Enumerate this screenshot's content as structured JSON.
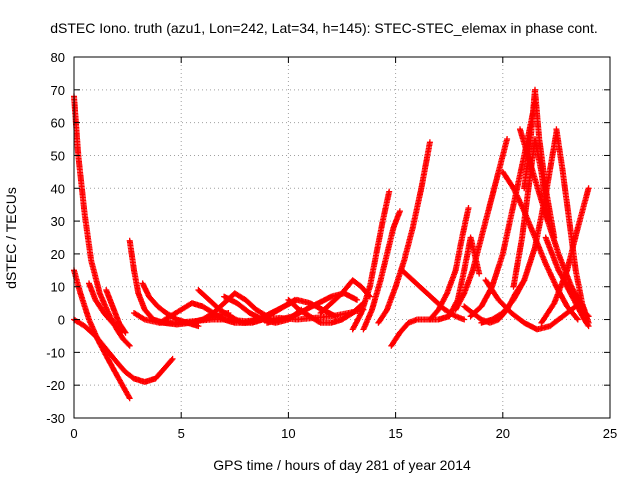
{
  "chart_data": {
    "type": "scatter",
    "title": "dSTEC Iono. truth (azu1, Lon=242, Lat=34, h=145): STEC-STEC_elemax in phase cont.",
    "xlabel": "GPS time / hours of day 281 of year 2014",
    "ylabel": "dSTEC  / TECUs",
    "xlim": [
      0,
      25
    ],
    "ylim": [
      -30,
      80
    ],
    "xticks": [
      0,
      5,
      10,
      15,
      20,
      25
    ],
    "yticks": [
      -30,
      -20,
      -10,
      0,
      10,
      20,
      30,
      40,
      50,
      60,
      70,
      80
    ],
    "grid": true,
    "marker": "+",
    "color": "#ff0000",
    "series": [
      {
        "x": [
          0.0,
          0.2,
          0.5,
          0.8,
          1.2,
          1.6,
          2.0,
          2.3,
          2.6
        ],
        "y": [
          68,
          50,
          32,
          18,
          8,
          2,
          -3,
          -6,
          -8
        ]
      },
      {
        "x": [
          0.0,
          0.3,
          0.7,
          1.1,
          1.5,
          2.0,
          2.6
        ],
        "y": [
          15,
          8,
          0,
          -6,
          -11,
          -17,
          -24
        ]
      },
      {
        "x": [
          0.0,
          0.5,
          1.0,
          1.5,
          2.0,
          2.4,
          2.8,
          3.3,
          3.8,
          4.2,
          4.6
        ],
        "y": [
          0,
          -2,
          -5,
          -9,
          -13,
          -16,
          -18,
          -19,
          -18,
          -15,
          -12
        ]
      },
      {
        "x": [
          0.7,
          1.0,
          1.4,
          1.8,
          2.2
        ],
        "y": [
          11,
          6,
          2,
          -1,
          -4
        ]
      },
      {
        "x": [
          1.5,
          1.8,
          2.1,
          2.4
        ],
        "y": [
          9,
          4,
          -1,
          -4
        ]
      },
      {
        "x": [
          2.6,
          2.8,
          3.0,
          3.3,
          3.7,
          4.2,
          4.8,
          5.4,
          6.0,
          6.6,
          7.2
        ],
        "y": [
          24,
          15,
          8,
          3,
          0,
          -1,
          -1.5,
          -1,
          0,
          1,
          2
        ]
      },
      {
        "x": [
          2.8,
          3.3,
          4.0,
          4.8,
          5.6,
          6.4,
          7.2,
          8.0,
          8.8,
          9.6,
          10.4,
          11.2,
          12.0,
          12.8,
          13.5
        ],
        "y": [
          2,
          0,
          -1,
          -1,
          -0.5,
          0,
          0,
          -0.5,
          0,
          0.5,
          0,
          0.5,
          1,
          2,
          3
        ]
      },
      {
        "x": [
          3.2,
          3.5,
          3.9,
          4.3,
          4.8,
          5.3,
          5.8
        ],
        "y": [
          11,
          7,
          4,
          2,
          0,
          -1,
          -2
        ]
      },
      {
        "x": [
          4.0,
          4.5,
          5.0,
          5.5,
          6.0,
          6.5,
          7.0,
          7.5,
          8.0
        ],
        "y": [
          -1,
          1,
          3,
          5,
          4,
          2,
          0,
          -1,
          -1
        ]
      },
      {
        "x": [
          5.5,
          6.0,
          6.5,
          7.0,
          7.5,
          8.0,
          8.5,
          9.0
        ],
        "y": [
          -1,
          0,
          2,
          5,
          8,
          6,
          3,
          1
        ]
      },
      {
        "x": [
          5.8,
          6.3,
          6.8,
          7.3,
          7.8,
          8.3,
          8.8,
          9.3,
          9.8,
          10.3
        ],
        "y": [
          9,
          6,
          3,
          1,
          -1,
          -1,
          0,
          2,
          4,
          6
        ]
      },
      {
        "x": [
          7.0,
          7.6,
          8.2,
          8.8,
          9.4,
          10.0,
          10.6
        ],
        "y": [
          7,
          5,
          2,
          0,
          -1,
          0,
          3
        ]
      },
      {
        "x": [
          8.0,
          8.6,
          9.2,
          9.8,
          10.4,
          11.0,
          11.6,
          12.2
        ],
        "y": [
          -1,
          0,
          2,
          4,
          6,
          5,
          3,
          1
        ]
      },
      {
        "x": [
          9.0,
          9.6,
          10.2,
          10.8,
          11.4,
          12.0,
          12.6,
          13.2
        ],
        "y": [
          -1,
          0,
          1,
          3,
          5,
          7,
          8,
          6
        ]
      },
      {
        "x": [
          10.0,
          10.5,
          11.0,
          11.5,
          12.0,
          12.5,
          13.0,
          13.5
        ],
        "y": [
          6,
          3,
          1,
          -1,
          -1,
          0,
          2,
          5
        ]
      },
      {
        "x": [
          11.5,
          12.0,
          12.5,
          13.0,
          13.4,
          13.8
        ],
        "y": [
          2,
          5,
          8,
          12,
          10,
          7
        ]
      },
      {
        "x": [
          13.0,
          13.4,
          13.8,
          14.1,
          14.4,
          14.7
        ],
        "y": [
          -3,
          2,
          10,
          20,
          30,
          39
        ]
      },
      {
        "x": [
          13.5,
          13.9,
          14.3,
          14.6,
          14.9,
          15.2
        ],
        "y": [
          -3,
          3,
          12,
          20,
          28,
          33
        ]
      },
      {
        "x": [
          14.2,
          14.6,
          15.0,
          15.4,
          15.8,
          16.2,
          16.6
        ],
        "y": [
          -1,
          3,
          10,
          18,
          28,
          40,
          54
        ]
      },
      {
        "x": [
          14.8,
          15.2,
          15.6,
          16.0,
          16.5,
          17.0,
          17.5
        ],
        "y": [
          -8,
          -4,
          -1,
          0,
          0,
          0,
          1
        ]
      },
      {
        "x": [
          15.3,
          15.8,
          16.3,
          16.8,
          17.3,
          17.8,
          18.2
        ],
        "y": [
          15,
          12,
          9,
          6,
          3,
          1,
          0
        ]
      },
      {
        "x": [
          16.6,
          17.0,
          17.4,
          17.8,
          18.1,
          18.4
        ],
        "y": [
          0,
          3,
          8,
          15,
          25,
          34
        ]
      },
      {
        "x": [
          17.5,
          17.9,
          18.2,
          18.5,
          18.9
        ],
        "y": [
          1,
          6,
          15,
          25,
          14
        ]
      },
      {
        "x": [
          17.8,
          18.2,
          18.6,
          19.0,
          19.4,
          19.8,
          20.2
        ],
        "y": [
          3,
          8,
          15,
          25,
          35,
          45,
          55
        ]
      },
      {
        "x": [
          18.2,
          18.6,
          19.0,
          19.4,
          19.8,
          20.2,
          20.6,
          21.0
        ],
        "y": [
          4,
          2,
          0,
          -1,
          0,
          3,
          8,
          12
        ]
      },
      {
        "x": [
          18.5,
          19.0,
          19.5,
          20.0,
          20.5,
          21.0,
          21.5
        ],
        "y": [
          1,
          4,
          10,
          20,
          35,
          50,
          66
        ]
      },
      {
        "x": [
          19.0,
          19.5,
          20.0,
          20.5,
          21.0,
          21.5,
          22.0,
          22.5
        ],
        "y": [
          -1,
          0,
          2,
          6,
          12,
          22,
          38,
          57
        ]
      },
      {
        "x": [
          20.0,
          20.5,
          21.0,
          21.5,
          22.0,
          22.5,
          23.0,
          23.5
        ],
        "y": [
          45,
          40,
          33,
          25,
          17,
          10,
          4,
          0
        ]
      },
      {
        "x": [
          20.5,
          20.9,
          21.2,
          21.5,
          21.8,
          22.1
        ],
        "y": [
          10,
          25,
          40,
          55,
          45,
          30
        ]
      },
      {
        "x": [
          21.0,
          21.3,
          21.5,
          21.7,
          22.0,
          22.4
        ],
        "y": [
          40,
          55,
          70,
          55,
          40,
          25
        ]
      },
      {
        "x": [
          19.2,
          19.8,
          20.4,
          21.0,
          21.6,
          22.2,
          22.8,
          23.4
        ],
        "y": [
          12,
          6,
          2,
          -1,
          -3,
          -2,
          1,
          4
        ]
      },
      {
        "x": [
          20.8,
          21.4,
          22.0,
          22.6,
          23.2,
          23.8
        ],
        "y": [
          58,
          45,
          32,
          20,
          10,
          3
        ]
      },
      {
        "x": [
          22.5,
          22.8,
          23.1,
          23.4,
          23.7,
          24.0
        ],
        "y": [
          58,
          45,
          30,
          15,
          5,
          -1
        ]
      },
      {
        "x": [
          21.8,
          22.4,
          23.0,
          23.5,
          24.0
        ],
        "y": [
          -1,
          5,
          15,
          28,
          40
        ]
      },
      {
        "x": [
          22.0,
          22.6,
          23.2,
          23.7,
          24.0
        ],
        "y": [
          25,
          15,
          8,
          3,
          1
        ]
      },
      {
        "x": [
          23.0,
          23.4,
          23.8,
          24.0
        ],
        "y": [
          10,
          5,
          0,
          -2
        ]
      }
    ]
  }
}
